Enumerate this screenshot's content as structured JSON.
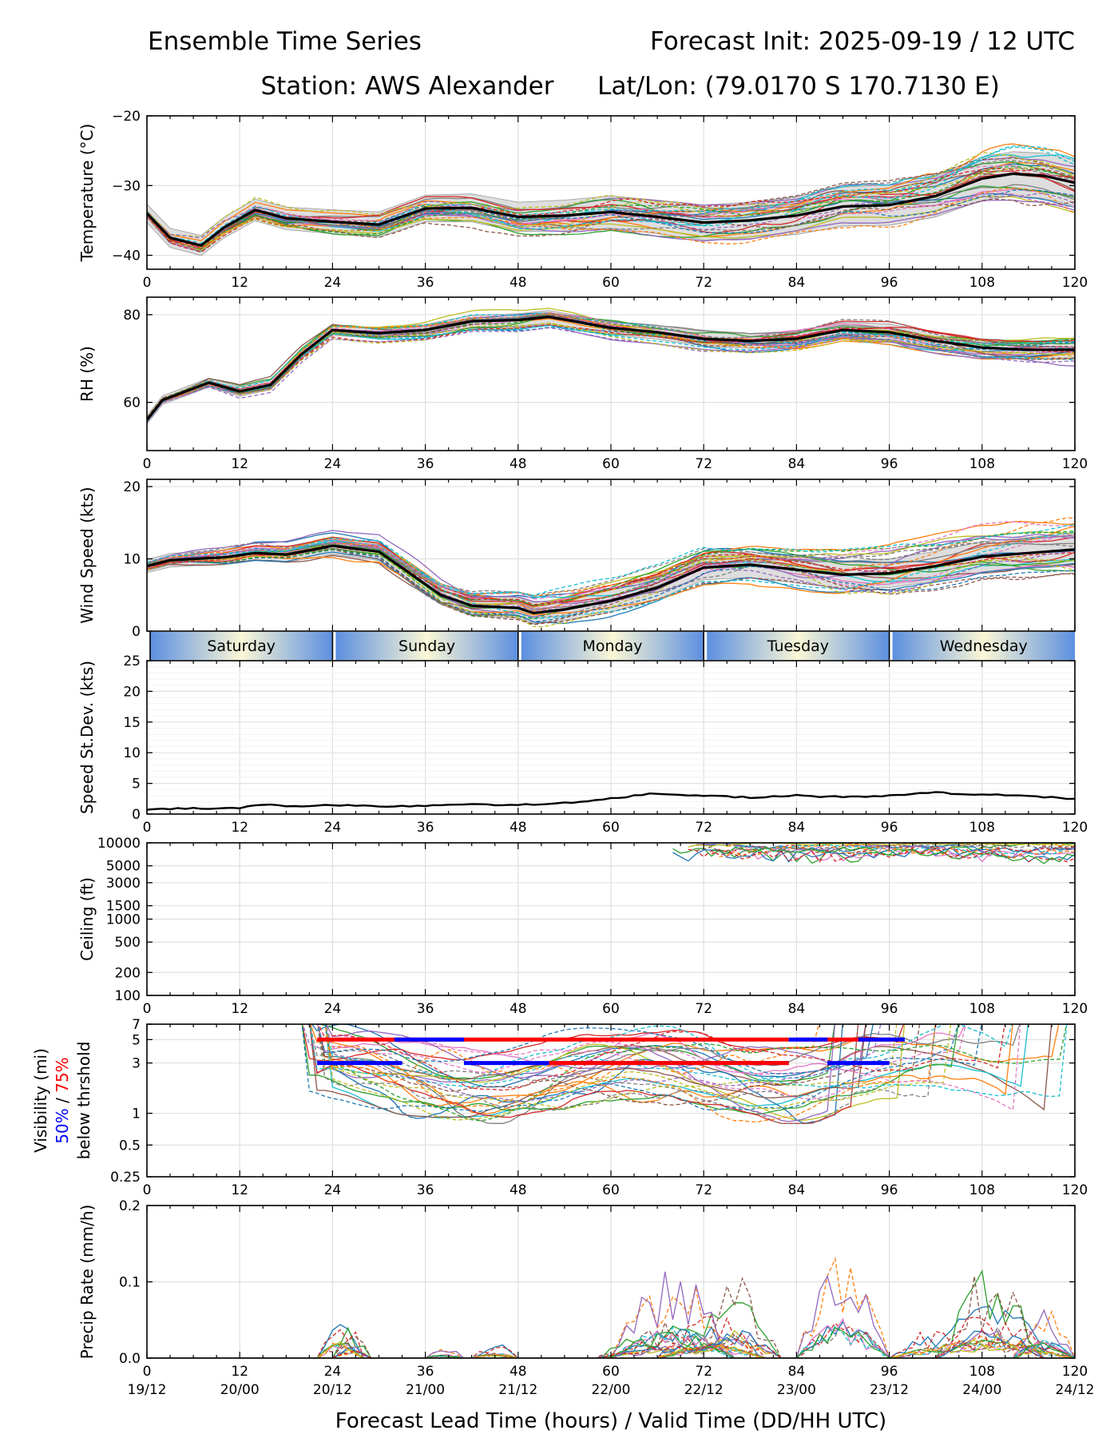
{
  "header": {
    "title_left": "Ensemble Time Series",
    "title_right": "Forecast Init: 2025-09-19 / 12 UTC",
    "station": "Station: AWS Alexander",
    "latlon": "Lat/Lon: (79.0170 S 170.7130 E)"
  },
  "xlabel": "Forecast Lead Time (hours) / Valid Time (DD/HH UTC)",
  "x_ticks": [
    "0",
    "12",
    "24",
    "36",
    "48",
    "60",
    "72",
    "84",
    "96",
    "108",
    "120"
  ],
  "valid_ticks": [
    "19/12",
    "20/00",
    "20/12",
    "21/00",
    "21/12",
    "22/00",
    "22/12",
    "23/00",
    "23/12",
    "24/00",
    "24/12"
  ],
  "days": [
    "Saturday",
    "Sunday",
    "Monday",
    "Tuesday",
    "Wednesday"
  ],
  "colors": {
    "mean": "#000000",
    "band": "#d9d9d9",
    "vis50": "#0000ff",
    "vis75": "#ff0000",
    "day_edge": "#5b8fe0",
    "day_mid": "#fbf7d6"
  },
  "palette": [
    "#1f77b4",
    "#ff7f0e",
    "#2ca02c",
    "#d62728",
    "#9467bd",
    "#8c564b",
    "#e377c2",
    "#7f7f7f",
    "#bcbd22",
    "#17becf"
  ],
  "chart_data": [
    {
      "id": "temperature",
      "type": "line",
      "ylabel": "Temperature (°C)",
      "ylim": [
        -42,
        -20
      ],
      "yticks": [
        -40,
        -30,
        -20
      ],
      "ytick_labels": [
        "−40",
        "−30",
        "−20"
      ],
      "mean": {
        "x": [
          0,
          3,
          7,
          10,
          14,
          18,
          24,
          30,
          36,
          42,
          48,
          54,
          60,
          66,
          72,
          78,
          84,
          90,
          96,
          102,
          108,
          112,
          116,
          120
        ],
        "y": [
          -34,
          -37.5,
          -38.6,
          -36,
          -33.5,
          -34.7,
          -35.2,
          -35.6,
          -33.3,
          -33.2,
          -34.5,
          -34.3,
          -33.8,
          -34.5,
          -35.3,
          -35.0,
          -34.3,
          -33.0,
          -32.8,
          -31.5,
          -29.0,
          -28.3,
          -28.6,
          -29.6
        ]
      },
      "spread": 2.2,
      "spread_growth": 2.5,
      "noise": 2.0
    },
    {
      "id": "rh",
      "type": "line",
      "ylabel": "RH (%)",
      "ylim": [
        49,
        84
      ],
      "yticks": [
        60,
        80
      ],
      "ytick_labels": [
        "60",
        "80"
      ],
      "mean": {
        "x": [
          0,
          2,
          5,
          8,
          12,
          16,
          20,
          24,
          30,
          36,
          42,
          48,
          52,
          60,
          66,
          72,
          78,
          84,
          90,
          96,
          102,
          108,
          114,
          120
        ],
        "y": [
          56,
          60.5,
          62.5,
          64.5,
          62.5,
          64,
          71,
          76.5,
          75.8,
          76.5,
          78.5,
          78.8,
          79.5,
          77,
          76,
          74.5,
          74,
          74.5,
          76.5,
          76,
          74,
          72.5,
          72,
          72
        ]
      },
      "spread": 1.6,
      "spread_growth": 2.2,
      "noise": 1.8
    },
    {
      "id": "wind",
      "type": "line",
      "ylabel": "Wind Speed (kts)",
      "ylim": [
        0,
        21
      ],
      "yticks": [
        0,
        10,
        20
      ],
      "ytick_labels": [
        "0",
        "10",
        "20"
      ],
      "mean": {
        "x": [
          0,
          3,
          6,
          10,
          14,
          18,
          24,
          30,
          34,
          38,
          42,
          48,
          50,
          54,
          60,
          66,
          72,
          78,
          84,
          90,
          96,
          102,
          108,
          114,
          120
        ],
        "y": [
          9,
          9.8,
          10,
          10.2,
          10.8,
          10.6,
          11.8,
          11,
          8,
          5,
          3.5,
          3.2,
          2.5,
          3,
          4.2,
          6,
          8.8,
          9.2,
          8.5,
          7.8,
          8,
          9,
          10.3,
          10.8,
          11.3
        ]
      },
      "spread": 1.5,
      "spread_growth": 2.5,
      "noise": 2.0
    },
    {
      "id": "speed_stdev",
      "type": "line",
      "ylabel": "Speed St.Dev. (kts)",
      "ylim": [
        0,
        25
      ],
      "yticks": [
        0,
        5,
        10,
        15,
        20,
        25
      ],
      "ytick_labels": [
        "0",
        "5",
        "10",
        "15",
        "20",
        "25"
      ],
      "mean": {
        "x": [
          0,
          6,
          12,
          15,
          20,
          24,
          30,
          36,
          40,
          44,
          48,
          56,
          60,
          65,
          72,
          78,
          84,
          88,
          96,
          102,
          108,
          114,
          120
        ],
        "y": [
          0.8,
          0.9,
          1.0,
          1.5,
          1.3,
          1.4,
          1.3,
          1.3,
          1.6,
          1.5,
          1.5,
          2.0,
          2.5,
          3.3,
          3.0,
          2.7,
          3.0,
          2.8,
          3.0,
          3.5,
          3.2,
          2.9,
          2.5
        ]
      }
    },
    {
      "id": "ceiling",
      "type": "line",
      "scale": "log",
      "ylabel": "Ceiling (ft)",
      "ylim": [
        100,
        10000
      ],
      "yticks": [
        100,
        200,
        500,
        1000,
        1500,
        3000,
        5000,
        10000
      ],
      "ytick_labels": [
        "100",
        "200",
        "500",
        "1000",
        "1500",
        "3000",
        "5000",
        "10000"
      ],
      "members_start_hour": 68,
      "members_range_ft": [
        5200,
        10000
      ]
    },
    {
      "id": "visibility",
      "type": "line",
      "scale": "log",
      "ylabel": "Visibility (mi)",
      "ylabel_50": "50%",
      "ylabel_slash": " / ",
      "ylabel_75": "75%",
      "ylabel_below": "below thrshold",
      "ylim": [
        0.25,
        7
      ],
      "yticks": [
        0.25,
        0.5,
        1,
        3,
        5,
        7
      ],
      "ytick_labels": [
        "0.25",
        "0.5",
        "1",
        "3",
        "5",
        "7"
      ],
      "threshold_5mi_75pct": [
        [
          22,
          83
        ],
        [
          84,
          97
        ]
      ],
      "threshold_5mi_50pct": [
        [
          32,
          41
        ],
        [
          83,
          88
        ],
        [
          92,
          98
        ]
      ],
      "threshold_3mi_50pct": [
        [
          22,
          33
        ],
        [
          41,
          83
        ],
        [
          88,
          96
        ]
      ],
      "threshold_3mi_75pct": [
        [
          52,
          83
        ]
      ]
    },
    {
      "id": "precip",
      "type": "line",
      "ylabel": "Precip Rate (mm/h)",
      "ylim": [
        0,
        0.2
      ],
      "yticks": [
        0,
        0.1,
        0.2
      ],
      "ytick_labels": [
        "0.0",
        "0.1",
        "0.2"
      ]
    }
  ]
}
